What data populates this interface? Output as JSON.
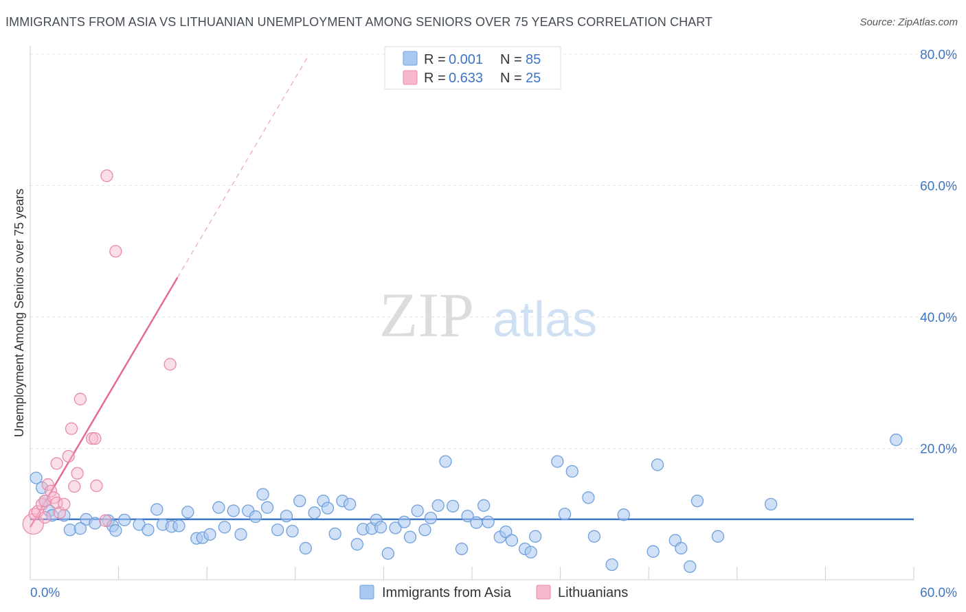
{
  "chart_data": {
    "type": "scatter",
    "title": "IMMIGRANTS FROM ASIA VS LITHUANIAN UNEMPLOYMENT AMONG SENIORS OVER 75 YEARS CORRELATION CHART",
    "source": "Source: ZipAtlas.com",
    "xlabel": "",
    "ylabel": "Unemployment Among Seniors over 75 years",
    "xlim": [
      0,
      60
    ],
    "ylim": [
      0,
      80
    ],
    "x_tick_labels": {
      "min": "0.0%",
      "max": "60.0%"
    },
    "y_ticks": [
      {
        "value": 20,
        "label": "20.0%"
      },
      {
        "value": 40,
        "label": "40.0%"
      },
      {
        "value": 60,
        "label": "60.0%"
      },
      {
        "value": 80,
        "label": "80.0%"
      }
    ],
    "watermark": {
      "part1": "ZIP",
      "part2": "atlas"
    },
    "legend_top": [
      {
        "r_label": "R = ",
        "r_value": "0.001",
        "n_label": "N = ",
        "n_value": "85",
        "color": "#a9c8f0",
        "stroke": "#6f9fdc"
      },
      {
        "r_label": "R = ",
        "r_value": "0.633",
        "n_label": "N = ",
        "n_value": "25",
        "color": "#f6b8cc",
        "stroke": "#e88aa8"
      }
    ],
    "series": [
      {
        "name": "Immigrants from Asia",
        "color": "#a9c8f0",
        "stroke": "#6f9fdc",
        "trend": {
          "x1": 0,
          "y1": 9.2,
          "x2": 60,
          "y2": 9.2,
          "color": "#3d74c4"
        },
        "points": [
          [
            0.4,
            15.5
          ],
          [
            0.8,
            14
          ],
          [
            1.0,
            12
          ],
          [
            1.3,
            10.5
          ],
          [
            2.3,
            9.8
          ],
          [
            3.8,
            9.2
          ],
          [
            5.3,
            9.0
          ],
          [
            6.4,
            9.1
          ],
          [
            2.7,
            7.6
          ],
          [
            3.4,
            7.8
          ],
          [
            4.4,
            8.6
          ],
          [
            5.6,
            8.2
          ],
          [
            5.8,
            7.5
          ],
          [
            7.4,
            8.4
          ],
          [
            8.0,
            7.6
          ],
          [
            8.6,
            10.7
          ],
          [
            9.0,
            8.4
          ],
          [
            9.6,
            8.1
          ],
          [
            10.1,
            8.2
          ],
          [
            10.7,
            10.3
          ],
          [
            11.3,
            6.3
          ],
          [
            11.7,
            6.4
          ],
          [
            12.2,
            6.9
          ],
          [
            12.8,
            11.0
          ],
          [
            13.2,
            8.0
          ],
          [
            13.8,
            10.5
          ],
          [
            14.3,
            6.9
          ],
          [
            14.8,
            10.5
          ],
          [
            15.3,
            9.6
          ],
          [
            15.8,
            13.0
          ],
          [
            16.1,
            11.0
          ],
          [
            16.8,
            7.6
          ],
          [
            17.4,
            9.7
          ],
          [
            17.8,
            7.4
          ],
          [
            18.3,
            12.0
          ],
          [
            18.7,
            4.8
          ],
          [
            19.3,
            10.2
          ],
          [
            19.9,
            12.0
          ],
          [
            20.2,
            10.9
          ],
          [
            20.7,
            7.0
          ],
          [
            21.2,
            12.0
          ],
          [
            21.7,
            11.5
          ],
          [
            22.2,
            5.4
          ],
          [
            22.6,
            7.7
          ],
          [
            23.2,
            7.8
          ],
          [
            23.5,
            9.1
          ],
          [
            23.8,
            8.0
          ],
          [
            24.3,
            4.0
          ],
          [
            24.8,
            7.9
          ],
          [
            25.4,
            8.8
          ],
          [
            25.8,
            6.5
          ],
          [
            26.3,
            10.5
          ],
          [
            26.8,
            7.6
          ],
          [
            27.2,
            9.4
          ],
          [
            27.7,
            11.3
          ],
          [
            28.2,
            18.0
          ],
          [
            28.7,
            11.2
          ],
          [
            29.3,
            4.7
          ],
          [
            29.7,
            9.7
          ],
          [
            30.3,
            8.7
          ],
          [
            30.8,
            11.3
          ],
          [
            31.1,
            8.8
          ],
          [
            31.9,
            6.5
          ],
          [
            32.3,
            7.3
          ],
          [
            32.7,
            6.0
          ],
          [
            33.6,
            4.7
          ],
          [
            34.0,
            4.2
          ],
          [
            34.3,
            6.6
          ],
          [
            35.8,
            18.0
          ],
          [
            36.3,
            10.0
          ],
          [
            36.8,
            16.5
          ],
          [
            37.9,
            12.5
          ],
          [
            38.3,
            6.6
          ],
          [
            39.5,
            2.3
          ],
          [
            40.3,
            9.9
          ],
          [
            42.3,
            4.3
          ],
          [
            42.6,
            17.5
          ],
          [
            43.8,
            6.0
          ],
          [
            44.2,
            4.8
          ],
          [
            44.8,
            2.0
          ],
          [
            45.3,
            12.0
          ],
          [
            46.7,
            6.6
          ],
          [
            50.3,
            11.5
          ],
          [
            58.8,
            21.3
          ],
          [
            1.5,
            9.8
          ]
        ]
      },
      {
        "name": "Lithuanians",
        "color": "#f6b8cc",
        "stroke": "#e88aa8",
        "trend": {
          "x1": 0,
          "y1": 8.0,
          "x2": 10,
          "y2": 46.0,
          "dash_x2": 18.9,
          "dash_y2": 79.8,
          "color": "#e66a96"
        },
        "points": [
          [
            0.2,
            8.5
          ],
          [
            0.3,
            10.0
          ],
          [
            0.5,
            10.4
          ],
          [
            0.8,
            11.5
          ],
          [
            1.0,
            12.0
          ],
          [
            1.2,
            14.5
          ],
          [
            1.4,
            13.5
          ],
          [
            1.6,
            12.5
          ],
          [
            1.8,
            11.7
          ],
          [
            2.0,
            10.2
          ],
          [
            2.3,
            11.5
          ],
          [
            1.8,
            17.7
          ],
          [
            2.6,
            18.8
          ],
          [
            2.8,
            23.0
          ],
          [
            3.0,
            14.2
          ],
          [
            3.2,
            16.2
          ],
          [
            3.4,
            27.5
          ],
          [
            4.2,
            21.5
          ],
          [
            4.4,
            21.5
          ],
          [
            4.5,
            14.3
          ],
          [
            5.1,
            9.0
          ],
          [
            5.2,
            61.5
          ],
          [
            5.8,
            50.0
          ],
          [
            9.5,
            32.8
          ],
          [
            1.0,
            9.5
          ]
        ]
      }
    ]
  }
}
